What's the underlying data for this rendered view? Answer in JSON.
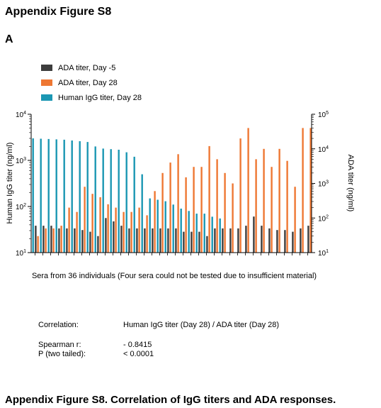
{
  "header": {
    "title": "Appendix Figure S8",
    "panel_label": "A"
  },
  "chart_data": {
    "type": "bar",
    "xlabel": "Sera from 36 individuals (Four sera could not be tested due to insufficient material)",
    "ylabel_left": "Human IgG titer (ng/ml)",
    "ylabel_right": "ADA titer (ng/ml)",
    "left_axis": {
      "scale": "log",
      "range": [
        10,
        10000
      ],
      "tick_exponents": [
        "1",
        "2",
        "3",
        "4"
      ]
    },
    "right_axis": {
      "scale": "log",
      "range": [
        10,
        100000
      ],
      "tick_exponents": [
        "1",
        "2",
        "3",
        "4",
        "5"
      ]
    },
    "legend": {
      "placement": "top-left",
      "entries": [
        {
          "name": "ADA titer, Day -5",
          "color": "#3d3d3d"
        },
        {
          "name": "ADA titer, Day 28",
          "color": "#ee7733"
        },
        {
          "name": "Human IgG titer, Day 28",
          "color": "#1b97b3"
        }
      ]
    },
    "series": [
      {
        "name": "Human IgG titer, Day 28",
        "axis": "left",
        "color": "#1b97b3",
        "values": [
          3000,
          2950,
          2900,
          2850,
          2800,
          2700,
          2600,
          2500,
          2000,
          1800,
          1750,
          1700,
          1500,
          1200,
          500,
          150,
          140,
          130,
          110,
          90,
          80,
          70,
          70,
          60,
          55,
          null,
          null,
          null,
          null,
          null,
          null,
          null,
          null,
          null,
          null,
          null
        ]
      },
      {
        "name": "ADA titer, Day -5",
        "axis": "right",
        "color": "#3d3d3d",
        "values": [
          60,
          60,
          60,
          50,
          50,
          50,
          45,
          40,
          30,
          100,
          80,
          60,
          50,
          50,
          50,
          50,
          50,
          50,
          50,
          40,
          40,
          40,
          30,
          50,
          50,
          50,
          50,
          60,
          110,
          60,
          50,
          45,
          45,
          40,
          50,
          60
        ]
      },
      {
        "name": "ADA titer, Day 28",
        "axis": "right",
        "color": "#ee7733",
        "values": [
          30,
          50,
          50,
          60,
          200,
          150,
          800,
          500,
          400,
          250,
          200,
          150,
          150,
          200,
          120,
          600,
          2000,
          4000,
          7000,
          1500,
          3000,
          3000,
          12000,
          5000,
          2000,
          1000,
          20000,
          40000,
          5000,
          10000,
          3000,
          10000,
          4500,
          800,
          40000,
          40000
        ]
      }
    ]
  },
  "stats": {
    "correlation_label": "Correlation:",
    "correlation_value": "Human IgG titer (Day 28) / ADA titer (Day 28)",
    "spearman_label": "Spearman r:",
    "spearman_value": "- 0.8415",
    "p_label": "P (two tailed):",
    "p_value": "< 0.0001"
  },
  "caption": "Appendix Figure S8. Correlation of IgG titers and ADA responses."
}
